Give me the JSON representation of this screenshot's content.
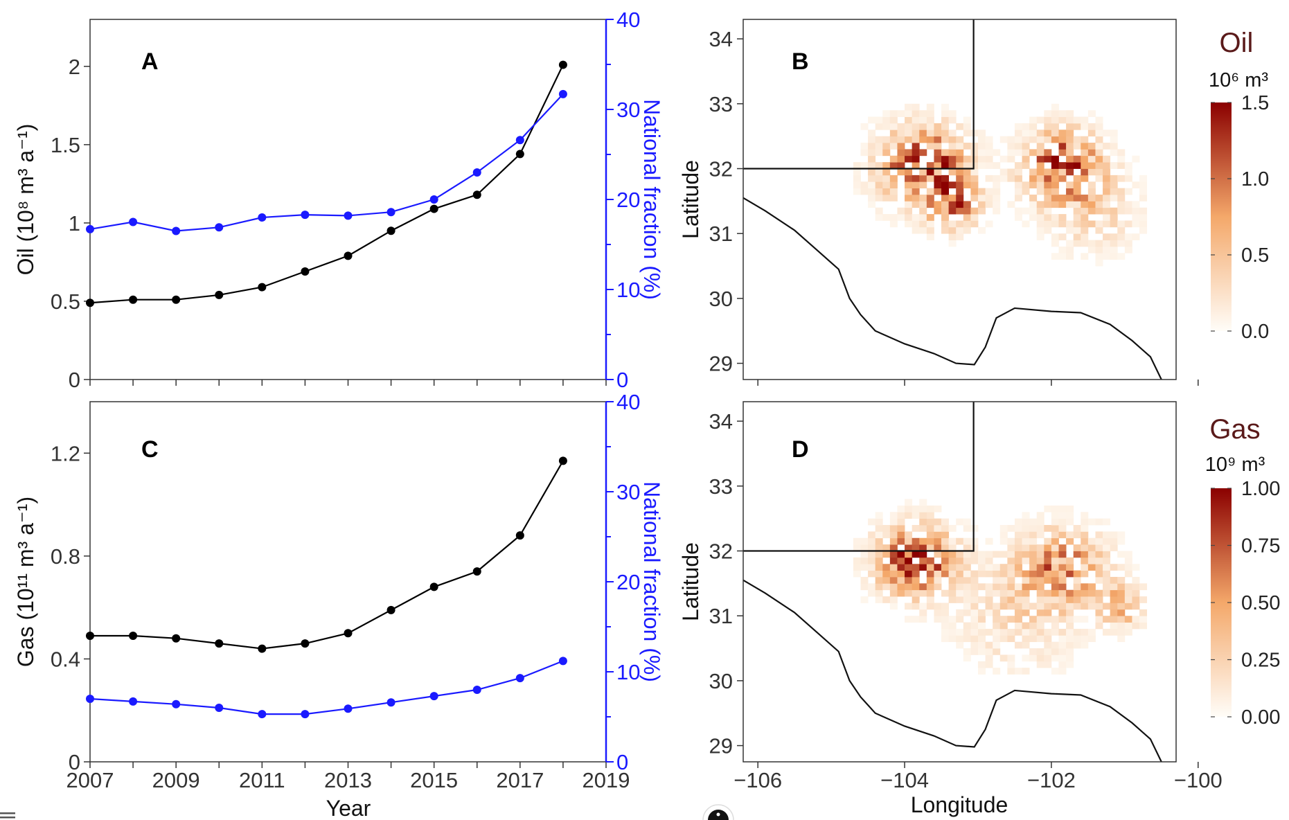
{
  "colors": {
    "oil_gas": "#000000",
    "national": "#1a1aff",
    "axes": "#333333"
  },
  "chart_data": [
    {
      "type": "line",
      "panel": "A",
      "xlabel": "",
      "ylabel": "Oil (10⁸ m³ a⁻¹)",
      "y2label": "National fraction (%)",
      "xlim": [
        2007,
        2019
      ],
      "ylim": [
        0,
        2.3
      ],
      "y2lim": [
        0,
        40
      ],
      "xticks": [
        2007,
        2009,
        2011,
        2013,
        2015,
        2017,
        2019
      ],
      "yticks": [
        "0",
        "0.5",
        "1",
        "1.5",
        "2"
      ],
      "y2ticks": [
        "0",
        "10",
        "20",
        "30",
        "40"
      ],
      "x": [
        2007,
        2008,
        2009,
        2010,
        2011,
        2012,
        2013,
        2014,
        2015,
        2016,
        2017,
        2018
      ],
      "series": [
        {
          "axis": "left",
          "color": "#000000",
          "values": [
            0.49,
            0.51,
            0.51,
            0.54,
            0.59,
            0.69,
            0.79,
            0.95,
            1.09,
            1.18,
            1.44,
            2.01
          ]
        },
        {
          "axis": "right",
          "color": "#1a1aff",
          "values": [
            16.7,
            17.5,
            16.5,
            16.9,
            18.0,
            18.3,
            18.2,
            18.6,
            20.0,
            23.0,
            26.6,
            31.7
          ]
        }
      ]
    },
    {
      "type": "line",
      "panel": "C",
      "xlabel": "Year",
      "ylabel": "Gas (10¹¹ m³ a⁻¹)",
      "y2label": "National fraction (%)",
      "xlim": [
        2007,
        2019
      ],
      "ylim": [
        0,
        1.4
      ],
      "y2lim": [
        0,
        40
      ],
      "xticks": [
        2007,
        2009,
        2011,
        2013,
        2015,
        2017,
        2019
      ],
      "yticks": [
        "0",
        "0.4",
        "0.8",
        "1.2"
      ],
      "y2ticks": [
        "0",
        "10",
        "20",
        "30",
        "40"
      ],
      "x": [
        2007,
        2008,
        2009,
        2010,
        2011,
        2012,
        2013,
        2014,
        2015,
        2016,
        2017,
        2018
      ],
      "series": [
        {
          "axis": "left",
          "color": "#000000",
          "values": [
            0.49,
            0.49,
            0.48,
            0.46,
            0.44,
            0.46,
            0.5,
            0.59,
            0.68,
            0.74,
            0.88,
            1.17
          ]
        },
        {
          "axis": "right",
          "color": "#1a1aff",
          "values": [
            7.0,
            6.7,
            6.4,
            6.0,
            5.3,
            5.3,
            5.9,
            6.6,
            7.3,
            8.0,
            9.3,
            11.2
          ]
        }
      ]
    },
    {
      "type": "heatmap",
      "panel": "B",
      "xlabel": "",
      "ylabel": "Latitude",
      "xlim": [
        -106.2,
        -100.3
      ],
      "ylim": [
        28.75,
        34.3
      ],
      "xticks": [
        "−106",
        "−104",
        "−102",
        "−100"
      ],
      "yticks": [
        "29",
        "30",
        "31",
        "32",
        "33",
        "34"
      ],
      "colorbar": {
        "title": "Oil",
        "unit": "10⁶ m³",
        "ticks": [
          "0.0",
          "0.5",
          "1.0",
          "1.5"
        ],
        "range": [
          0,
          1.5
        ],
        "low": "#fffdf8",
        "mid": "#f4a86a",
        "high": "#8b0000"
      },
      "hotspots": [
        {
          "lon": -103.8,
          "lat": 32.0,
          "peak": 1.5,
          "spread": 0.55
        },
        {
          "lon": -101.9,
          "lat": 32.0,
          "peak": 1.4,
          "spread": 0.5
        },
        {
          "lon": -103.4,
          "lat": 31.4,
          "peak": 1.0,
          "spread": 0.35
        },
        {
          "lon": -101.5,
          "lat": 31.3,
          "peak": 0.4,
          "spread": 0.6
        }
      ]
    },
    {
      "type": "heatmap",
      "panel": "D",
      "xlabel": "Longitude",
      "ylabel": "Latitude",
      "xlim": [
        -106.2,
        -100.3
      ],
      "ylim": [
        28.75,
        34.3
      ],
      "xticks": [
        "−106",
        "−104",
        "−102",
        "−100"
      ],
      "yticks": [
        "29",
        "30",
        "31",
        "32",
        "33",
        "34"
      ],
      "colorbar": {
        "title": "Gas",
        "unit": "10⁹ m³",
        "ticks": [
          "0.00",
          "0.25",
          "0.50",
          "0.75",
          "1.00"
        ],
        "range": [
          0,
          1.0
        ],
        "low": "#fffdf8",
        "mid": "#f4a86a",
        "high": "#8b0000"
      },
      "hotspots": [
        {
          "lon": -103.9,
          "lat": 31.8,
          "peak": 1.0,
          "spread": 0.5
        },
        {
          "lon": -101.9,
          "lat": 31.7,
          "peak": 0.65,
          "spread": 0.55
        },
        {
          "lon": -101.1,
          "lat": 31.1,
          "peak": 0.55,
          "spread": 0.3
        },
        {
          "lon": -102.5,
          "lat": 31.0,
          "peak": 0.25,
          "spread": 0.8
        }
      ]
    }
  ],
  "panel_labels": {
    "a": "A",
    "b": "B",
    "c": "C",
    "d": "D"
  },
  "ui": {
    "menu_icon": "hamburger-icon",
    "info_icon": "info-icon"
  }
}
